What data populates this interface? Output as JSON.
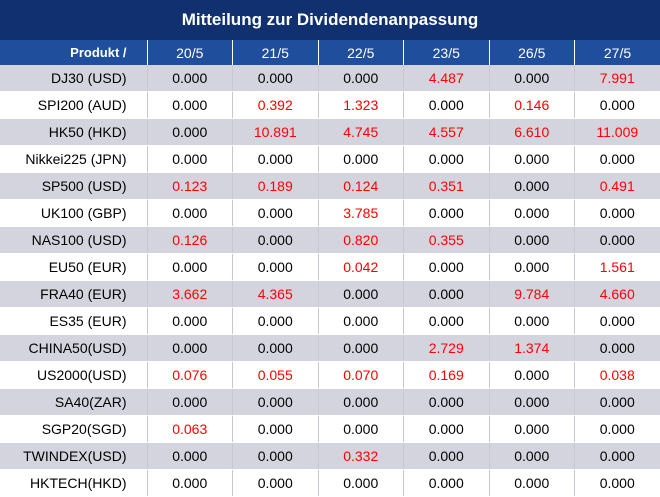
{
  "title": "Mitteilung zur Dividendenanpassung",
  "header": {
    "product_label": "Produkt /",
    "dates": [
      "20/5",
      "21/5",
      "22/5",
      "23/5",
      "26/5",
      "27/5"
    ]
  },
  "rows": [
    {
      "product": "DJ30 (USD)",
      "values": [
        "0.000",
        "0.000",
        "0.000",
        "4.487",
        "0.000",
        "7.991"
      ]
    },
    {
      "product": "SPI200 (AUD)",
      "values": [
        "0.000",
        "0.392",
        "1.323",
        "0.000",
        "0.146",
        "0.000"
      ]
    },
    {
      "product": "HK50 (HKD)",
      "values": [
        "0.000",
        "10.891",
        "4.745",
        "4.557",
        "6.610",
        "11.009"
      ]
    },
    {
      "product": "Nikkei225 (JPN)",
      "values": [
        "0.000",
        "0.000",
        "0.000",
        "0.000",
        "0.000",
        "0.000"
      ]
    },
    {
      "product": "SP500 (USD)",
      "values": [
        "0.123",
        "0.189",
        "0.124",
        "0.351",
        "0.000",
        "0.491"
      ]
    },
    {
      "product": "UK100 (GBP)",
      "values": [
        "0.000",
        "0.000",
        "3.785",
        "0.000",
        "0.000",
        "0.000"
      ]
    },
    {
      "product": "NAS100 (USD)",
      "values": [
        "0.126",
        "0.000",
        "0.820",
        "0.355",
        "0.000",
        "0.000"
      ]
    },
    {
      "product": "EU50 (EUR)",
      "values": [
        "0.000",
        "0.000",
        "0.042",
        "0.000",
        "0.000",
        "1.561"
      ]
    },
    {
      "product": "FRA40 (EUR)",
      "values": [
        "3.662",
        "4.365",
        "0.000",
        "0.000",
        "9.784",
        "4.660"
      ]
    },
    {
      "product": "ES35 (EUR)",
      "values": [
        "0.000",
        "0.000",
        "0.000",
        "0.000",
        "0.000",
        "0.000"
      ]
    },
    {
      "product": "CHINA50(USD)",
      "values": [
        "0.000",
        "0.000",
        "0.000",
        "2.729",
        "1.374",
        "0.000"
      ]
    },
    {
      "product": "US2000(USD)",
      "values": [
        "0.076",
        "0.055",
        "0.070",
        "0.169",
        "0.000",
        "0.038"
      ]
    },
    {
      "product": "SA40(ZAR)",
      "values": [
        "0.000",
        "0.000",
        "0.000",
        "0.000",
        "0.000",
        "0.000"
      ]
    },
    {
      "product": "SGP20(SGD)",
      "values": [
        "0.063",
        "0.000",
        "0.000",
        "0.000",
        "0.000",
        "0.000"
      ]
    },
    {
      "product": "TWINDEX(USD)",
      "values": [
        "0.000",
        "0.000",
        "0.332",
        "0.000",
        "0.000",
        "0.000"
      ]
    },
    {
      "product": "HKTECH(HKD)",
      "values": [
        "0.000",
        "0.000",
        "0.000",
        "0.000",
        "0.000",
        "0.000"
      ]
    }
  ],
  "colors": {
    "title_bg": "#10306f",
    "header_bg": "#1f4e9c",
    "stripe": "#d4d4de",
    "nonzero_text": "#ff0000",
    "zero_text": "#000000"
  }
}
